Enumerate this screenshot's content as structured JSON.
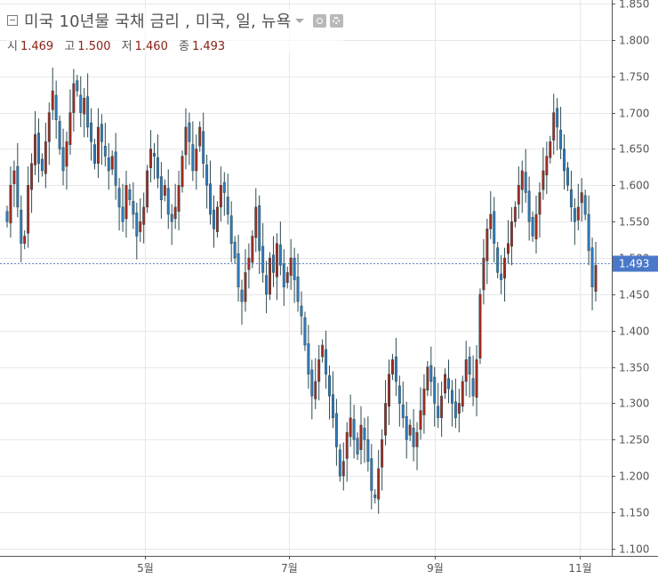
{
  "header": {
    "title": "미국 10년물 국채 금리 , 미국, 일, 뉴욕",
    "icons": [
      "collapse-icon",
      "dropdown-caret-icon",
      "eye-icon",
      "gear-icon"
    ],
    "ohlc": [
      {
        "label": "시",
        "value": "1.469"
      },
      {
        "label": "고",
        "value": "1.500"
      },
      {
        "label": "저",
        "value": "1.460"
      },
      {
        "label": "종",
        "value": "1.493"
      }
    ]
  },
  "colors": {
    "up": "#a52a1d",
    "down": "#2f7bbd",
    "wick": "#2c4a52",
    "grid": "#e8e8e8",
    "price_line": "#5b84c4",
    "price_label_bg": "#4a78c9"
  },
  "chart_data": {
    "type": "candlestick",
    "title": "미국 10년물 국채 금리 , 미국, 일, 뉴욕",
    "x_tick_labels": [
      "5월",
      "7월",
      "9월",
      "11월"
    ],
    "y_ticks": [
      "1.100",
      "1.150",
      "1.200",
      "1.250",
      "1.300",
      "1.350",
      "1.400",
      "1.450",
      "1.500",
      "1.550",
      "1.600",
      "1.650",
      "1.700",
      "1.750",
      "1.800",
      "1.850"
    ],
    "ylim": [
      1.09,
      1.855
    ],
    "last_price": "1.493",
    "grid": true,
    "close_series": [
      1.55,
      1.6,
      1.62,
      1.57,
      1.52,
      1.53,
      1.6,
      1.63,
      1.67,
      1.63,
      1.62,
      1.66,
      1.7,
      1.73,
      1.69,
      1.65,
      1.62,
      1.66,
      1.7,
      1.74,
      1.73,
      1.7,
      1.72,
      1.68,
      1.66,
      1.63,
      1.68,
      1.66,
      1.64,
      1.62,
      1.64,
      1.6,
      1.57,
      1.55,
      1.6,
      1.58,
      1.56,
      1.53,
      1.55,
      1.57,
      1.62,
      1.65,
      1.64,
      1.61,
      1.58,
      1.6,
      1.56,
      1.55,
      1.57,
      1.6,
      1.64,
      1.68,
      1.66,
      1.62,
      1.65,
      1.68,
      1.63,
      1.6,
      1.56,
      1.54,
      1.57,
      1.6,
      1.59,
      1.56,
      1.52,
      1.5,
      1.46,
      1.44,
      1.48,
      1.5,
      1.53,
      1.57,
      1.51,
      1.48,
      1.45,
      1.5,
      1.48,
      1.52,
      1.49,
      1.46,
      1.48,
      1.5,
      1.47,
      1.44,
      1.42,
      1.38,
      1.34,
      1.31,
      1.33,
      1.36,
      1.38,
      1.34,
      1.31,
      1.28,
      1.24,
      1.2,
      1.22,
      1.26,
      1.28,
      1.25,
      1.23,
      1.27,
      1.25,
      1.22,
      1.18,
      1.17,
      1.21,
      1.25,
      1.3,
      1.34,
      1.36,
      1.33,
      1.3,
      1.28,
      1.25,
      1.27,
      1.24,
      1.26,
      1.29,
      1.32,
      1.35,
      1.33,
      1.3,
      1.28,
      1.31,
      1.34,
      1.32,
      1.3,
      1.28,
      1.3,
      1.33,
      1.36,
      1.34,
      1.31,
      1.36,
      1.45,
      1.5,
      1.54,
      1.56,
      1.52,
      1.48,
      1.47,
      1.5,
      1.52,
      1.55,
      1.57,
      1.6,
      1.62,
      1.59,
      1.55,
      1.53,
      1.56,
      1.59,
      1.62,
      1.64,
      1.66,
      1.7,
      1.68,
      1.65,
      1.62,
      1.6,
      1.57,
      1.55,
      1.57,
      1.59,
      1.56,
      1.51,
      1.46,
      1.49
    ]
  }
}
